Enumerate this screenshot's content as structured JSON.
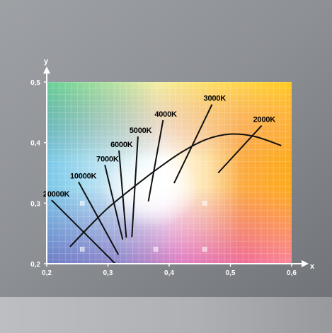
{
  "chart_data": {
    "type": "line",
    "title": "",
    "xlabel": "x",
    "ylabel": "y",
    "xlim": [
      0.2,
      0.6
    ],
    "ylim": [
      0.2,
      0.5
    ],
    "x_ticks": [
      "0,2",
      "0,3",
      "0,4",
      "0,5",
      "0,6"
    ],
    "y_ticks": [
      "0,2",
      "0,3",
      "0,4",
      "0,5"
    ],
    "x_tick_values": [
      0.2,
      0.3,
      0.4,
      0.5,
      0.6
    ],
    "y_tick_values": [
      0.2,
      0.3,
      0.4,
      0.5
    ],
    "grid": true,
    "planckian_locus": {
      "x": [
        0.238,
        0.27,
        0.3,
        0.34,
        0.38,
        0.42,
        0.46,
        0.5,
        0.54,
        0.583
      ],
      "y": [
        0.228,
        0.262,
        0.292,
        0.325,
        0.356,
        0.384,
        0.405,
        0.414,
        0.41,
        0.395
      ]
    },
    "isotherms": [
      {
        "label": "20000K",
        "x1": 0.208,
        "y1": 0.305,
        "x2": 0.312,
        "y2": 0.2
      },
      {
        "label": "10000K",
        "x1": 0.252,
        "y1": 0.335,
        "x2": 0.317,
        "y2": 0.215
      },
      {
        "label": "7000K",
        "x1": 0.295,
        "y1": 0.363,
        "x2": 0.324,
        "y2": 0.24
      },
      {
        "label": "6000K",
        "x1": 0.318,
        "y1": 0.387,
        "x2": 0.33,
        "y2": 0.243
      },
      {
        "label": "5000K",
        "x1": 0.349,
        "y1": 0.41,
        "x2": 0.339,
        "y2": 0.244
      },
      {
        "label": "4000K",
        "x1": 0.39,
        "y1": 0.437,
        "x2": 0.366,
        "y2": 0.303
      },
      {
        "label": "3000K",
        "x1": 0.47,
        "y1": 0.463,
        "x2": 0.408,
        "y2": 0.333
      },
      {
        "label": "2000K",
        "x1": 0.551,
        "y1": 0.428,
        "x2": 0.48,
        "y2": 0.35
      }
    ],
    "reference_points": [
      {
        "x": 0.258,
        "y": 0.3
      },
      {
        "x": 0.458,
        "y": 0.3
      },
      {
        "x": 0.258,
        "y": 0.224
      },
      {
        "x": 0.378,
        "y": 0.224
      },
      {
        "x": 0.458,
        "y": 0.224
      }
    ],
    "colors": {
      "curve": "#111111",
      "axis": "#ffffff",
      "tick_label": "#ffffff",
      "isotherm_label": "#000000",
      "background": "#8f9297"
    }
  }
}
